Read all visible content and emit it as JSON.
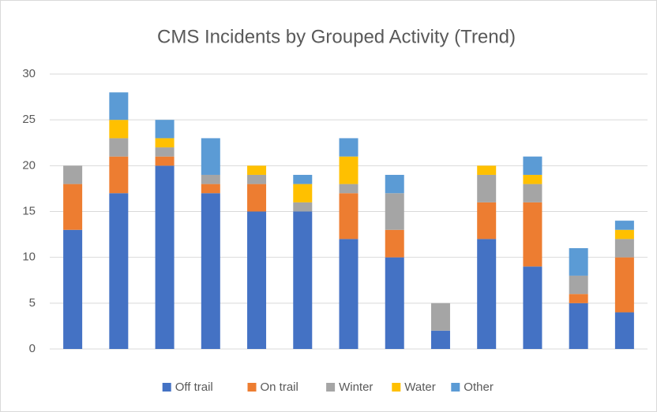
{
  "chart_data": {
    "type": "stacked_bar",
    "title": "CMS  Incidents by Grouped Activity (Trend)",
    "categories": [
      null,
      null,
      null,
      null,
      null,
      null,
      null,
      null,
      null,
      null,
      null,
      null,
      null
    ],
    "series": [
      {
        "name": "Off trail",
        "color": "#4472c4",
        "values": [
          13,
          17,
          20,
          17,
          15,
          15,
          12,
          10,
          2,
          12,
          9,
          5,
          4
        ]
      },
      {
        "name": "On trail",
        "color": "#ed7d31",
        "values": [
          5,
          4,
          1,
          1,
          3,
          0,
          5,
          3,
          0,
          4,
          7,
          1,
          6
        ]
      },
      {
        "name": "Winter",
        "color": "#a5a5a5",
        "values": [
          2,
          2,
          1,
          1,
          1,
          1,
          1,
          4,
          3,
          3,
          2,
          2,
          2
        ]
      },
      {
        "name": "Water",
        "color": "#ffc000",
        "values": [
          0,
          2,
          1,
          0,
          1,
          2,
          3,
          0,
          0,
          1,
          1,
          0,
          1
        ]
      },
      {
        "name": "Other",
        "color": "#5b9bd5",
        "values": [
          0,
          3,
          2,
          4,
          0,
          1,
          2,
          2,
          0,
          0,
          2,
          3,
          1
        ]
      }
    ],
    "ylim": [
      0,
      30
    ],
    "yticks": [
      0,
      5,
      10,
      15,
      20,
      25,
      30
    ],
    "grid": true,
    "legend": "bottom"
  }
}
